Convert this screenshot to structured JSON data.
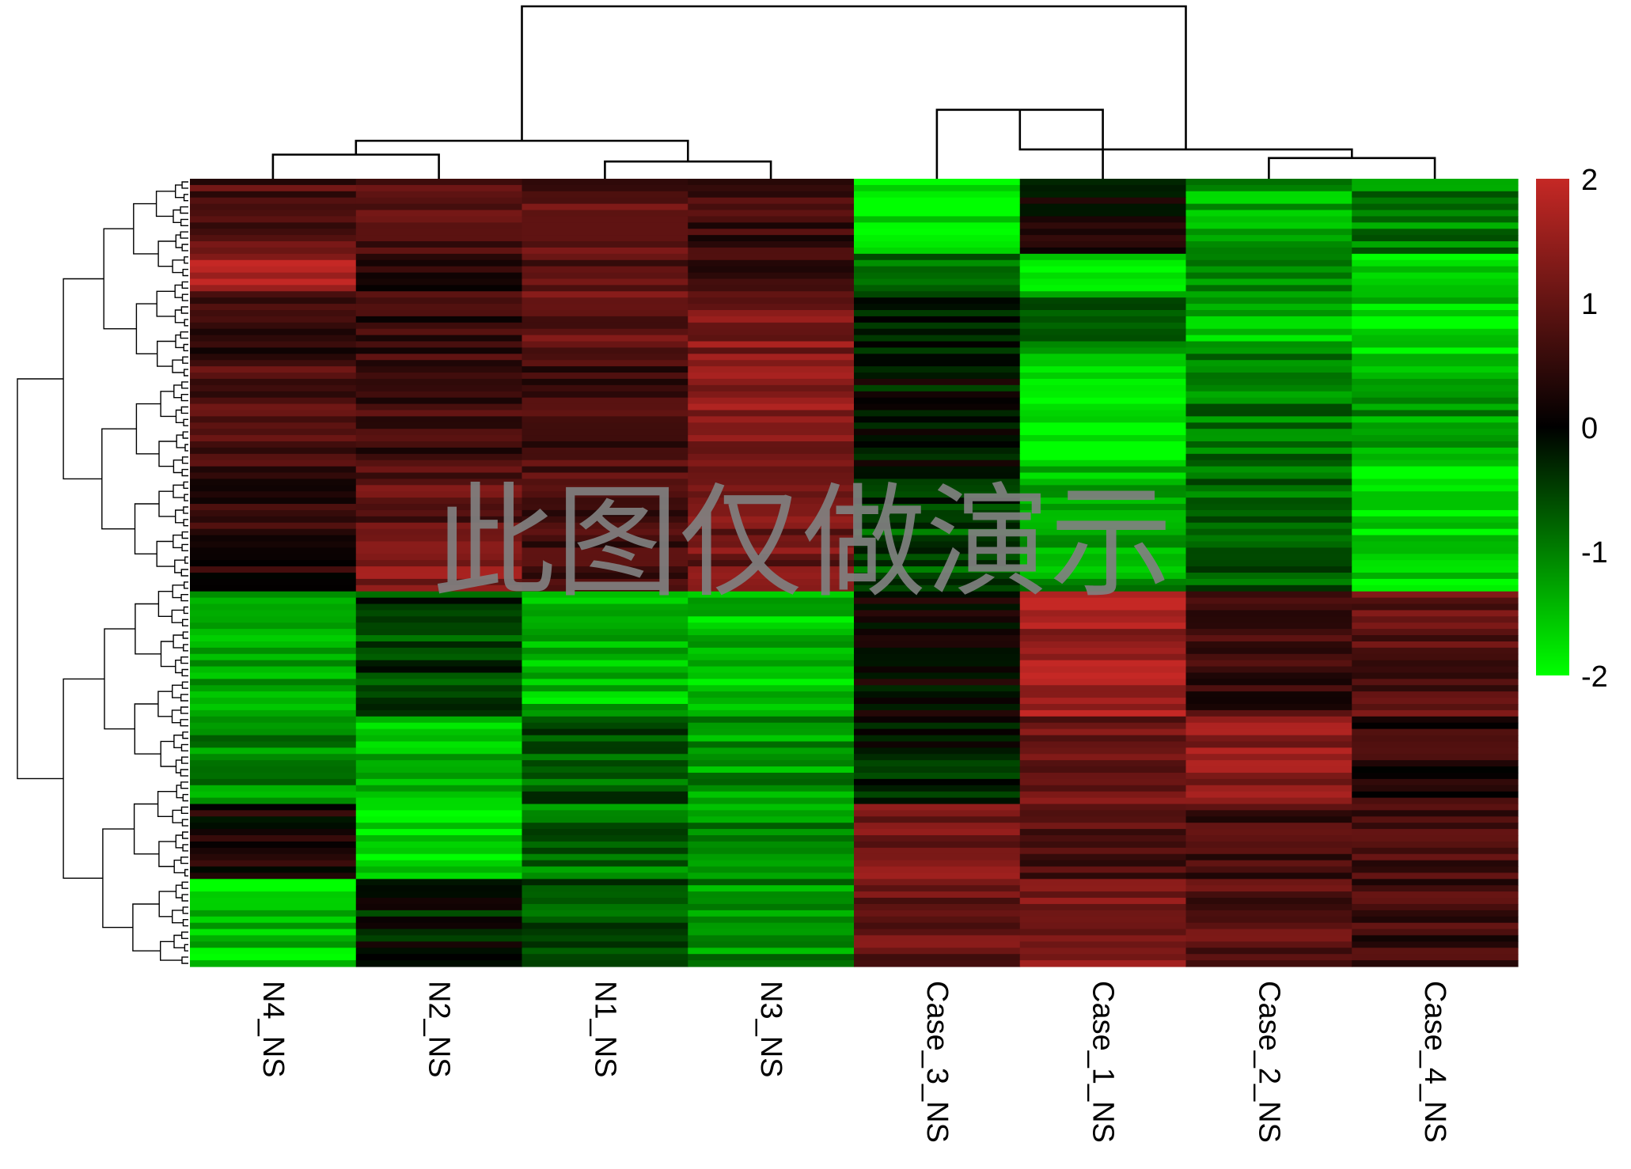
{
  "chart_data": {
    "type": "heatmap",
    "title": "",
    "xlabel": "",
    "ylabel": "",
    "columns": [
      "N4_NS",
      "N2_NS",
      "N1_NS",
      "N3_NS",
      "Case_3_NS",
      "Case_1_NS",
      "Case_2_NS",
      "Case_4_NS"
    ],
    "row_blocks": [
      {
        "name": "block-1",
        "rows": 12,
        "values": [
          0.8,
          0.9,
          0.9,
          0.6,
          -1.9,
          0.1,
          -1.3,
          -1.0
        ]
      },
      {
        "name": "block-2",
        "rows": 6,
        "values": [
          1.6,
          0.3,
          0.8,
          0.7,
          -0.7,
          -1.9,
          -1.2,
          -1.8
        ]
      },
      {
        "name": "block-3",
        "rows": 10,
        "values": [
          0.6,
          0.5,
          1.0,
          1.3,
          -0.4,
          -0.9,
          -1.5,
          -1.7
        ]
      },
      {
        "name": "block-4",
        "rows": 18,
        "values": [
          0.7,
          0.6,
          0.7,
          1.4,
          -0.1,
          -2.0,
          -1.0,
          -1.2
        ]
      },
      {
        "name": "block-5",
        "rows": 10,
        "values": [
          0.5,
          0.9,
          0.7,
          1.2,
          -0.3,
          -1.4,
          -0.9,
          -1.8
        ]
      },
      {
        "name": "block-6",
        "rows": 10,
        "values": [
          0.4,
          1.3,
          0.6,
          1.1,
          -0.6,
          -1.2,
          -0.7,
          -1.6
        ]
      },
      {
        "name": "block-7",
        "rows": 20,
        "values": [
          -1.2,
          -0.5,
          -1.5,
          -1.5,
          0.1,
          1.6,
          0.6,
          0.9
        ]
      },
      {
        "name": "block-8",
        "rows": 14,
        "values": [
          -1.1,
          -1.5,
          -0.7,
          -1.2,
          -0.2,
          1.1,
          1.4,
          0.4
        ]
      },
      {
        "name": "block-9",
        "rows": 12,
        "values": [
          0.2,
          -1.8,
          -0.9,
          -1.1,
          1.2,
          0.8,
          0.7,
          0.8
        ]
      },
      {
        "name": "block-10",
        "rows": 14,
        "values": [
          -1.6,
          -0.2,
          -0.6,
          -1.1,
          1.0,
          1.3,
          0.9,
          0.6
        ]
      }
    ],
    "colorbar": {
      "ticks": [
        "2",
        "1",
        "0",
        "-1",
        "-2"
      ],
      "values": [
        2,
        1,
        0,
        -1,
        -2
      ],
      "range": [
        -2,
        2
      ],
      "colors": {
        "high": "#c52825",
        "mid": "#000000",
        "low": "#00ff00"
      }
    },
    "column_dendrogram": [
      {
        "between": [
          0,
          1
        ],
        "height": 0.14
      },
      {
        "between": [
          2,
          3
        ],
        "height": 0.1
      },
      {
        "between": [
          4,
          5
        ],
        "height": 0.4
      },
      {
        "between": [
          6,
          7
        ],
        "height": 0.12
      },
      {
        "between": [
          5,
          6
        ],
        "height": 0.17
      },
      {
        "between": [
          1,
          2
        ],
        "height": 0.22
      },
      {
        "between": [
          0,
          4
        ],
        "height": 1.0
      }
    ],
    "watermark": "此图仅做演示"
  }
}
